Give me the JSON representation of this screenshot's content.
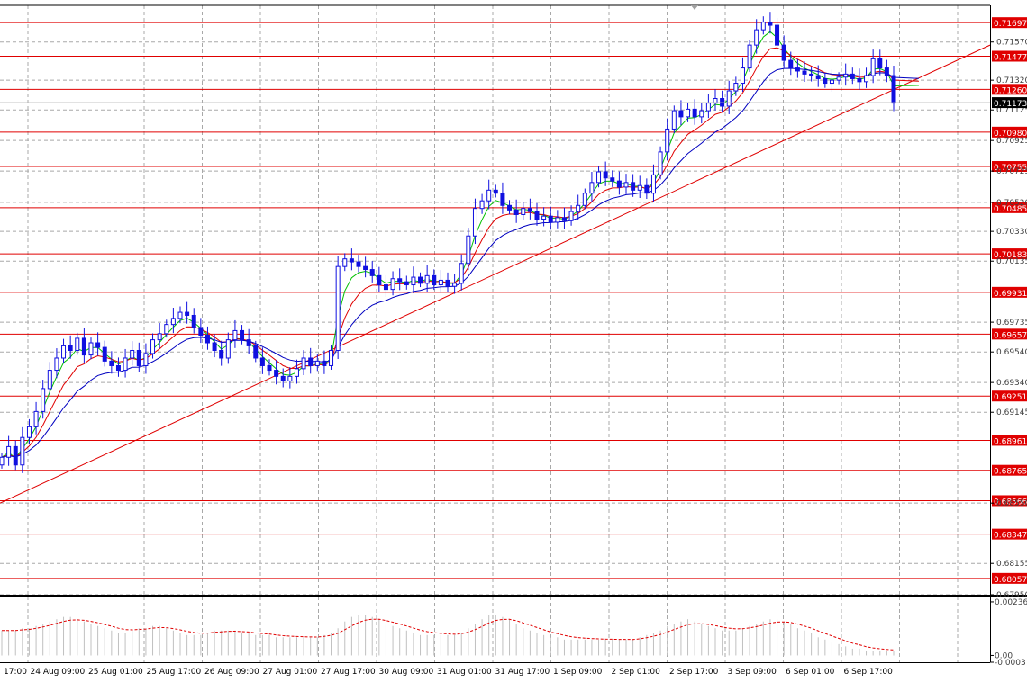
{
  "chart_data": [
    {
      "type": "candlestick",
      "title": "",
      "xlabel": "",
      "ylabel": "",
      "ylim": [
        0.6795,
        0.7181
      ],
      "grid": true,
      "x_ticks": [
        "17:00",
        "24 Aug 09:00",
        "25 Aug 01:00",
        "25 Aug 17:00",
        "26 Aug 09:00",
        "27 Aug 01:00",
        "27 Aug 17:00",
        "30 Aug 09:00",
        "31 Aug 01:00",
        "31 Aug 17:00",
        "1 Sep 09:00",
        "2 Sep 01:00",
        "2 Sep 17:00",
        "3 Sep 09:00",
        "6 Sep 01:00",
        "6 Sep 17:00"
      ],
      "y_ticks": [
        "0.71570",
        "0.71320",
        "0.71125",
        "0.70925",
        "0.70725",
        "0.70520",
        "0.70330",
        "0.70135",
        "0.69735",
        "0.69540",
        "0.69340",
        "0.69145",
        "0.68550",
        "0.68155",
        "0.67950"
      ],
      "current_price": "0.71173",
      "levels": [
        "0.71697",
        "0.71477",
        "0.71260",
        "0.70980",
        "0.70755",
        "0.70485",
        "0.70183",
        "0.69931",
        "0.69657",
        "0.69251",
        "0.68961",
        "0.68765",
        "0.68566",
        "0.68347",
        "0.68057"
      ],
      "price_path": [
        0.6885,
        0.6892,
        0.688,
        0.6898,
        0.6905,
        0.6915,
        0.693,
        0.6942,
        0.695,
        0.6958,
        0.6955,
        0.6963,
        0.6952,
        0.696,
        0.6957,
        0.6948,
        0.6945,
        0.6942,
        0.695,
        0.6955,
        0.6945,
        0.6953,
        0.6962,
        0.6966,
        0.6972,
        0.6976,
        0.698,
        0.6978,
        0.697,
        0.6965,
        0.696,
        0.6955,
        0.695,
        0.6962,
        0.6968,
        0.6962,
        0.6958,
        0.695,
        0.6945,
        0.6942,
        0.6938,
        0.6935,
        0.6938,
        0.6943,
        0.695,
        0.6945,
        0.6948,
        0.6945,
        0.6955,
        0.701,
        0.7015,
        0.7013,
        0.701,
        0.7008,
        0.7004,
        0.6998,
        0.6995,
        0.7002,
        0.7,
        0.6998,
        0.7003,
        0.6999,
        0.7004,
        0.6998,
        0.7001,
        0.6997,
        0.6999,
        0.7012,
        0.703,
        0.7048,
        0.7053,
        0.706,
        0.7058,
        0.705,
        0.7047,
        0.7044,
        0.7048,
        0.7046,
        0.7041,
        0.7043,
        0.7039,
        0.7042,
        0.704,
        0.7046,
        0.705,
        0.7058,
        0.7065,
        0.7072,
        0.7068,
        0.7066,
        0.7062,
        0.7065,
        0.706,
        0.7063,
        0.7058,
        0.707,
        0.7085,
        0.71,
        0.7112,
        0.7108,
        0.7113,
        0.7108,
        0.7112,
        0.7117,
        0.712,
        0.7115,
        0.7125,
        0.713,
        0.714,
        0.7155,
        0.7165,
        0.717,
        0.7168,
        0.7155,
        0.7145,
        0.714,
        0.7138,
        0.7136,
        0.7135,
        0.7133,
        0.713,
        0.7132,
        0.7134,
        0.7136,
        0.7133,
        0.7131,
        0.7135,
        0.7146,
        0.714,
        0.7135,
        0.7117
      ],
      "trendline": {
        "from": 0.6855,
        "to": 0.7155
      },
      "legend": "none"
    },
    {
      "type": "histogram",
      "title": "",
      "ylim": [
        -0.0003,
        0.0026
      ],
      "y_ticks": [
        "0.002364",
        "0.00",
        "-0.0003"
      ],
      "values": [
        0.0011,
        0.0011,
        0.0011,
        0.0012,
        0.0012,
        0.0013,
        0.0014,
        0.0015,
        0.0016,
        0.0017,
        0.0017,
        0.0016,
        0.0015,
        0.0014,
        0.0013,
        0.0012,
        0.0011,
        0.001,
        0.001,
        0.0011,
        0.0012,
        0.0012,
        0.0013,
        0.0013,
        0.0012,
        0.0011,
        0.001,
        0.0009,
        0.0009,
        0.0009,
        0.001,
        0.0011,
        0.0011,
        0.0011,
        0.0011,
        0.001,
        0.001,
        0.0009,
        0.0009,
        0.0009,
        0.0008,
        0.0008,
        0.0008,
        0.0008,
        0.0008,
        0.0008,
        0.0008,
        0.0009,
        0.001,
        0.0012,
        0.0015,
        0.0017,
        0.0018,
        0.0018,
        0.0017,
        0.0016,
        0.0014,
        0.0013,
        0.0012,
        0.0011,
        0.001,
        0.0009,
        0.0009,
        0.0009,
        0.0009,
        0.0009,
        0.0009,
        0.001,
        0.0012,
        0.0014,
        0.0016,
        0.0018,
        0.0018,
        0.0017,
        0.0016,
        0.0014,
        0.0012,
        0.0011,
        0.001,
        0.0009,
        0.0008,
        0.0008,
        0.0007,
        0.0007,
        0.0007,
        0.0007,
        0.0007,
        0.0007,
        0.0007,
        0.0007,
        0.0007,
        0.0007,
        0.0007,
        0.0008,
        0.0009,
        0.001,
        0.0011,
        0.0013,
        0.0014,
        0.0015,
        0.0016,
        0.0015,
        0.0014,
        0.0013,
        0.0012,
        0.0011,
        0.0011,
        0.0011,
        0.0012,
        0.0013,
        0.0014,
        0.0015,
        0.0016,
        0.0016,
        0.0015,
        0.0014,
        0.0012,
        0.0011,
        0.001,
        0.0008,
        0.0007,
        0.0006,
        0.0005,
        0.0004,
        0.0003,
        0.0003,
        0.0002,
        0.0002,
        0.0002,
        0.0002,
        0.0002
      ],
      "legend": "none"
    }
  ],
  "colors": {
    "background": "#ffffff",
    "grid": "#a8a8a8",
    "frame": "#000000",
    "candle": "#1010e0",
    "level_line": "#e00000",
    "level_label_bg": "#e00000",
    "level_label_text": "#ffffff",
    "price_label_bg": "#000000",
    "ma_fast": "#00c000",
    "ma_mid": "#e00000",
    "ma_slow": "#0000c0",
    "trendline": "#e00000",
    "histogram": "#c0c0c0",
    "signal": "#e00000",
    "text": "#000000"
  }
}
